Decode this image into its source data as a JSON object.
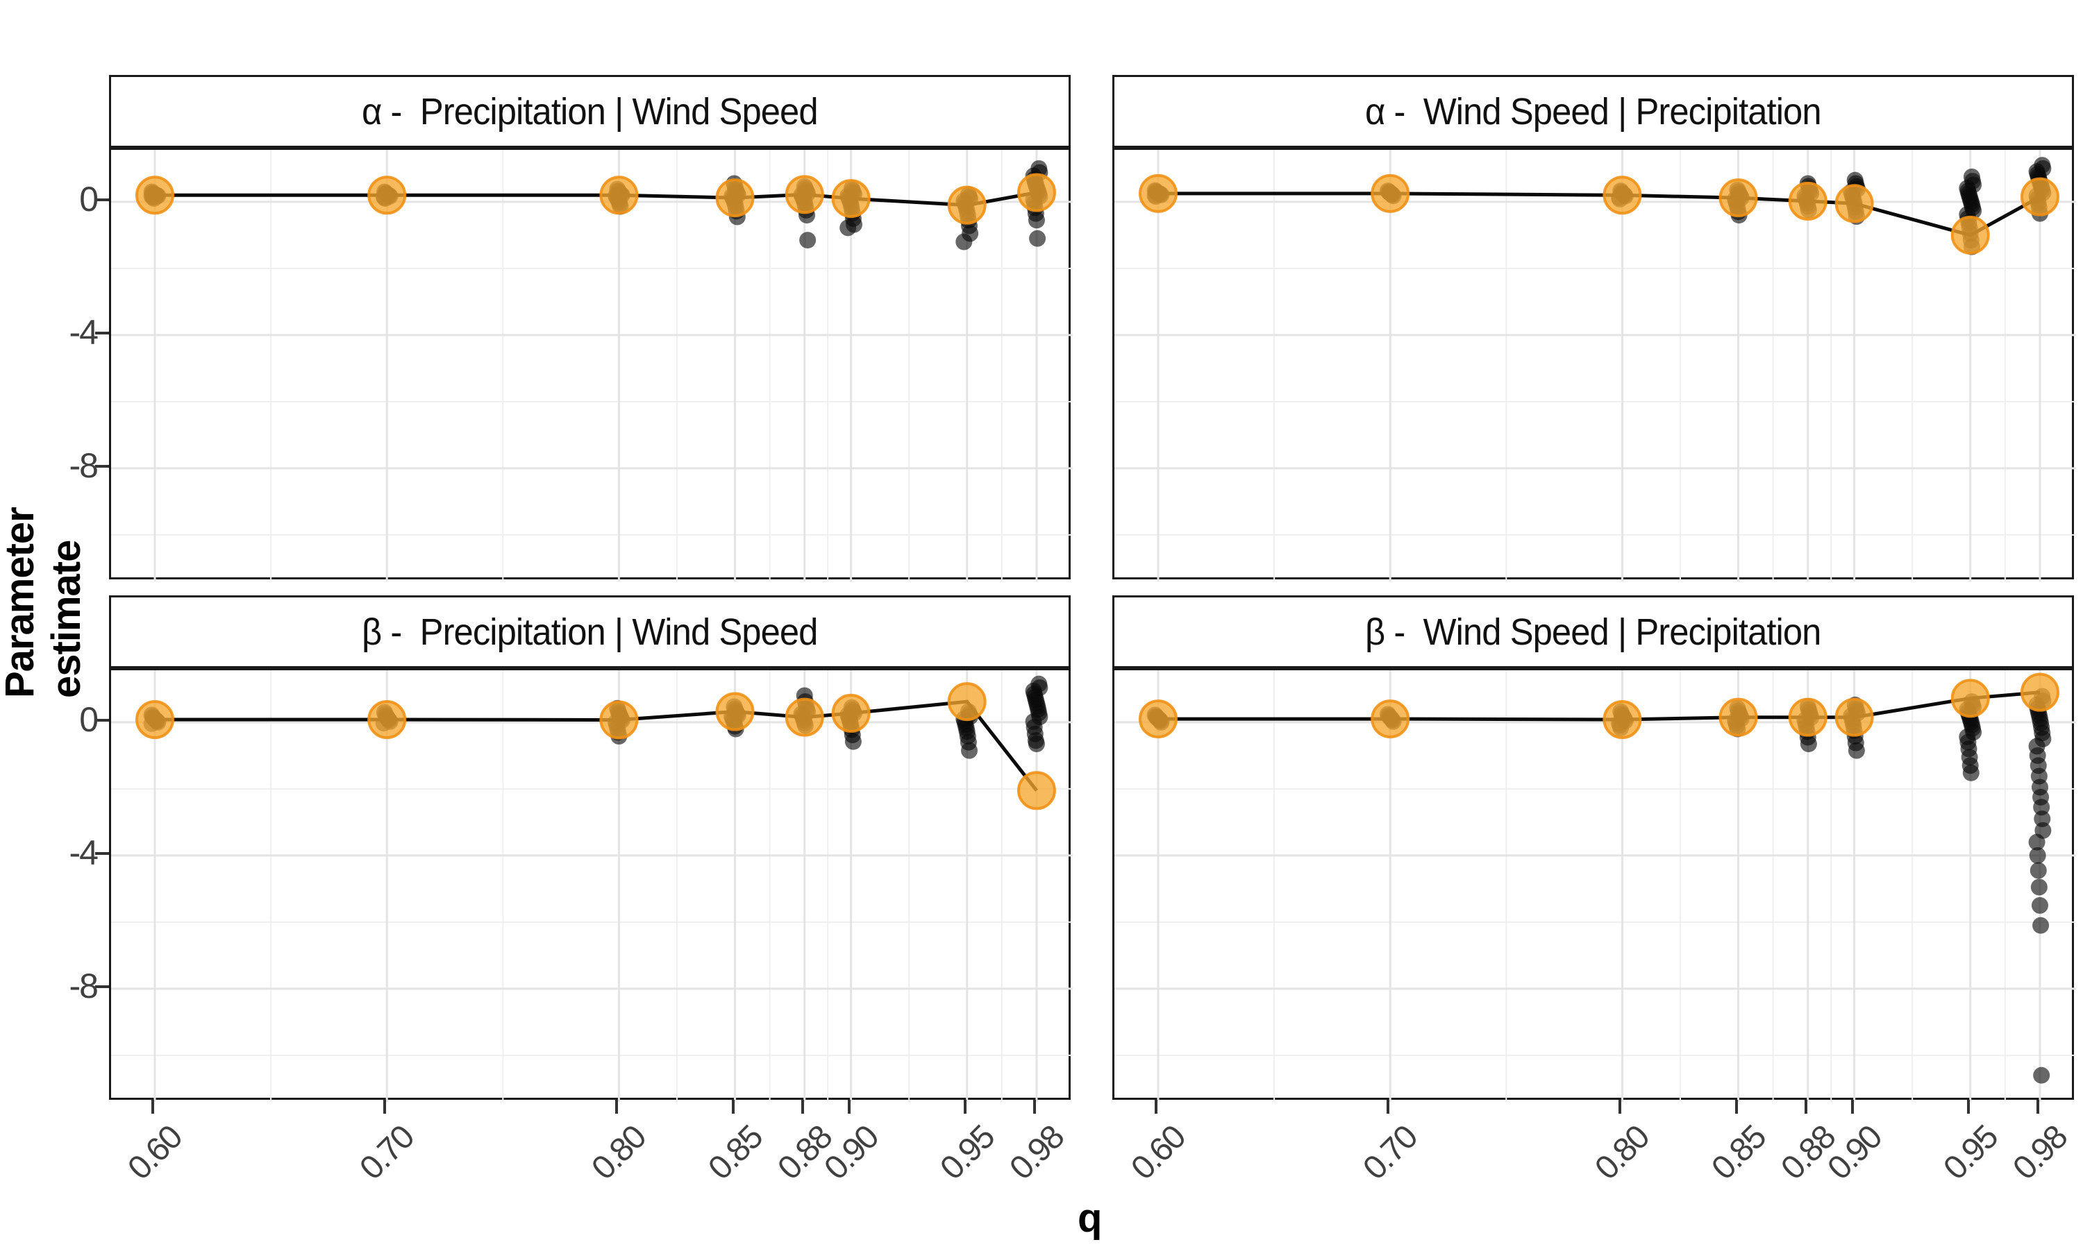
{
  "figure": {
    "xlabel": "q",
    "ylabel": "Parameter estimate"
  },
  "chart_data": {
    "type": "scatter",
    "title": "",
    "xlabel": "q",
    "ylabel": "Parameter estimate",
    "x": [
      0.6,
      0.7,
      0.8,
      0.85,
      0.88,
      0.9,
      0.95,
      0.98
    ],
    "x_tick_labels": [
      "0.60",
      "0.70",
      "0.80",
      "0.85",
      "0.88",
      "0.90",
      "0.95",
      "0.98"
    ],
    "x_minor": [
      0.65,
      0.75,
      0.825,
      0.865,
      0.89,
      0.925,
      0.965
    ],
    "y_ticks": [
      0,
      -4,
      -8
    ],
    "y_tick_labels": [
      "0",
      "-4",
      "-8"
    ],
    "y_minor": [
      -2,
      -6,
      -10
    ],
    "y_range": [
      -11.4,
      1.56
    ],
    "grid": "on",
    "legend": "none",
    "colors": {
      "mean_fill": "rgba(245,166,48,0.78)",
      "mean_edge": "rgba(239,145,21,0.9)",
      "point_fill": "rgba(10,10,10,0.62)",
      "line": "#0a0a0a",
      "grid_major": "#e4e4e4",
      "grid_minor": "#efefef",
      "panel_border": "#1a1a1a",
      "tick_text": "#404040"
    },
    "facets": [
      {
        "strip": "α -  Precipitation | Wind Speed",
        "row": 0,
        "col": 0,
        "mean": [
          0.2,
          0.2,
          0.2,
          0.12,
          0.22,
          0.1,
          -0.1,
          0.28
        ],
        "points": {
          "0.60": [
            0.3,
            0.27,
            0.25,
            0.23,
            0.22,
            0.21,
            0.2,
            0.19,
            0.18,
            0.17,
            0.15,
            0.13,
            0.1
          ],
          "0.70": [
            0.3,
            0.27,
            0.25,
            0.23,
            0.21,
            0.2,
            0.19,
            0.17,
            0.15,
            0.12,
            0.1
          ],
          "0.80": [
            0.38,
            0.33,
            0.29,
            0.26,
            0.24,
            0.22,
            0.2,
            0.18,
            0.15,
            0.11,
            0.06,
            0.0,
            -0.07,
            -0.14
          ],
          "0.85": [
            0.55,
            0.45,
            0.36,
            0.3,
            0.25,
            0.21,
            0.17,
            0.13,
            0.08,
            0.02,
            -0.06,
            -0.15,
            -0.28,
            -0.45
          ],
          "0.88": [
            0.46,
            0.4,
            0.34,
            0.29,
            0.25,
            0.21,
            0.17,
            0.12,
            0.06,
            -0.02,
            -0.12,
            -0.25,
            -0.4,
            -1.15
          ],
          "0.90": [
            0.4,
            0.34,
            0.28,
            0.23,
            0.18,
            0.13,
            0.07,
            0.0,
            -0.09,
            -0.2,
            -0.34,
            -0.5,
            -0.68,
            -0.78
          ],
          "0.95": [
            0.22,
            0.15,
            0.09,
            0.03,
            -0.03,
            -0.1,
            -0.18,
            -0.28,
            -0.4,
            -0.55,
            -0.72,
            -0.95,
            -1.2
          ],
          "0.98": [
            1.0,
            0.88,
            0.78,
            0.68,
            0.6,
            0.52,
            0.45,
            0.38,
            0.31,
            0.24,
            0.16,
            0.07,
            -0.04,
            -0.18,
            -0.35,
            -0.55,
            -1.1
          ]
        }
      },
      {
        "strip": "α -  Wind Speed | Precipitation",
        "row": 0,
        "col": 1,
        "mean": [
          0.25,
          0.25,
          0.2,
          0.12,
          0.02,
          -0.05,
          -1.0,
          0.15
        ],
        "points": {
          "0.60": [
            0.34,
            0.31,
            0.29,
            0.27,
            0.26,
            0.25,
            0.24,
            0.23,
            0.21,
            0.19,
            0.16
          ],
          "0.70": [
            0.33,
            0.3,
            0.28,
            0.26,
            0.25,
            0.23,
            0.21,
            0.18
          ],
          "0.80": [
            0.33,
            0.29,
            0.26,
            0.24,
            0.22,
            0.2,
            0.17,
            0.13,
            0.08
          ],
          "0.85": [
            0.36,
            0.3,
            0.25,
            0.2,
            0.16,
            0.12,
            0.07,
            0.01,
            -0.07,
            -0.17,
            -0.3,
            -0.4
          ],
          "0.88": [
            0.55,
            0.47,
            0.39,
            0.32,
            0.25,
            0.18,
            0.11,
            0.04,
            -0.04,
            -0.13,
            -0.24
          ],
          "0.90": [
            0.65,
            0.55,
            0.46,
            0.38,
            0.3,
            0.22,
            0.14,
            0.05,
            -0.05,
            -0.16,
            -0.29,
            -0.44
          ],
          "0.95": [
            0.75,
            0.62,
            0.51,
            0.41,
            0.32,
            0.24,
            0.16,
            0.08,
            0.0,
            -0.08,
            -0.17,
            -0.27,
            -0.38,
            -0.5,
            -0.63,
            -0.78,
            -0.95,
            -1.15,
            -1.35
          ],
          "0.98": [
            1.1,
            1.0,
            0.91,
            0.83,
            0.75,
            0.67,
            0.59,
            0.51,
            0.43,
            0.35,
            0.27,
            0.18,
            0.08,
            -0.04,
            -0.18,
            -0.35
          ]
        }
      },
      {
        "strip": "β -  Precipitation | Wind Speed",
        "row": 1,
        "col": 0,
        "mean": [
          0.08,
          0.08,
          0.07,
          0.32,
          0.15,
          0.27,
          0.62,
          -2.05
        ],
        "points": {
          "0.60": [
            0.22,
            0.17,
            0.14,
            0.11,
            0.09,
            0.07,
            0.05,
            0.03,
            0.0,
            -0.04
          ],
          "0.70": [
            0.3,
            0.24,
            0.19,
            0.15,
            0.12,
            0.09,
            0.06,
            0.02,
            -0.03
          ],
          "0.80": [
            0.42,
            0.34,
            0.27,
            0.21,
            0.16,
            0.11,
            0.06,
            0.0,
            -0.08,
            -0.18,
            -0.3,
            -0.42
          ],
          "0.85": [
            0.47,
            0.4,
            0.34,
            0.29,
            0.25,
            0.21,
            0.17,
            0.12,
            0.06,
            -0.02,
            -0.12,
            -0.2
          ],
          "0.88": [
            0.8,
            0.62,
            0.48,
            0.38,
            0.31,
            0.25,
            0.19,
            0.13,
            0.06,
            -0.02,
            -0.1
          ],
          "0.90": [
            0.44,
            0.38,
            0.32,
            0.27,
            0.22,
            0.16,
            0.09,
            0.0,
            -0.1,
            -0.22,
            -0.38,
            -0.58
          ],
          "0.95": [
            0.32,
            0.24,
            0.17,
            0.1,
            0.02,
            -0.07,
            -0.17,
            -0.28,
            -0.42,
            -0.6,
            -0.85
          ],
          "0.98": [
            1.15,
            1.04,
            0.94,
            0.85,
            0.76,
            0.67,
            0.58,
            0.49,
            0.39,
            0.28,
            0.16,
            0.02,
            -0.15,
            -0.35,
            -0.55,
            -0.65
          ]
        }
      },
      {
        "strip": "β -  Wind Speed | Precipitation",
        "row": 1,
        "col": 1,
        "mean": [
          0.1,
          0.1,
          0.08,
          0.15,
          0.15,
          0.15,
          0.72,
          0.9
        ],
        "points": {
          "0.60": [
            0.22,
            0.18,
            0.15,
            0.13,
            0.11,
            0.09,
            0.07,
            0.04,
            0.0
          ],
          "0.70": [
            0.24,
            0.2,
            0.17,
            0.14,
            0.12,
            0.09,
            0.06,
            0.02
          ],
          "0.80": [
            0.32,
            0.26,
            0.21,
            0.17,
            0.13,
            0.09,
            0.04,
            -0.02,
            -0.09,
            -0.17
          ],
          "0.85": [
            0.42,
            0.34,
            0.28,
            0.22,
            0.17,
            0.11,
            0.05,
            -0.02,
            -0.1,
            -0.2
          ],
          "0.88": [
            0.47,
            0.38,
            0.3,
            0.22,
            0.14,
            0.06,
            -0.03,
            -0.14,
            -0.28,
            -0.45,
            -0.65
          ],
          "0.90": [
            0.52,
            0.43,
            0.35,
            0.27,
            0.19,
            0.1,
            0.0,
            -0.11,
            -0.25,
            -0.42,
            -0.62,
            -0.85
          ],
          "0.95": [
            0.62,
            0.53,
            0.45,
            0.38,
            0.31,
            0.24,
            0.17,
            0.09,
            0.01,
            -0.08,
            -0.18,
            -0.3,
            -0.44,
            -0.6,
            -0.8,
            -1.05,
            -1.3,
            -1.52
          ],
          "0.98": [
            0.78,
            0.64,
            0.52,
            0.41,
            0.31,
            0.21,
            0.1,
            -0.02,
            -0.16,
            -0.32,
            -0.5,
            -0.72,
            -1.0,
            -1.3,
            -1.62,
            -1.95,
            -2.25,
            -2.55,
            -2.9,
            -3.25,
            -3.6,
            -4.0,
            -4.45,
            -4.95,
            -5.5,
            -6.1,
            -10.6
          ]
        }
      }
    ]
  }
}
